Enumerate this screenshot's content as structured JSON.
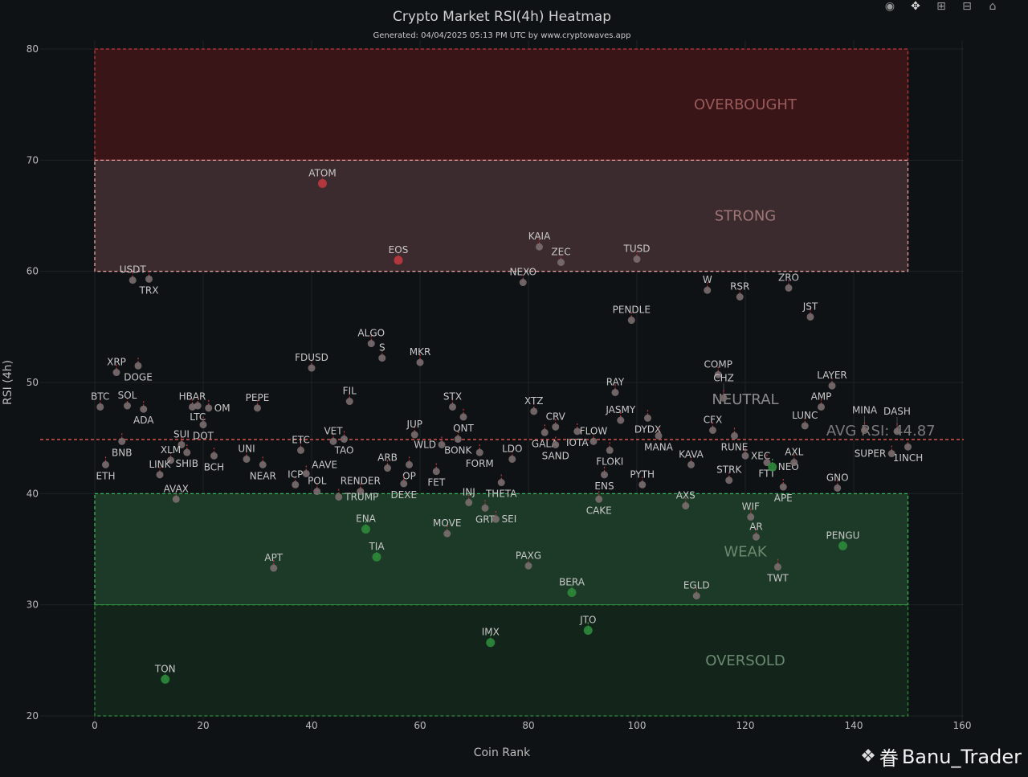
{
  "toolbar": {
    "icons": [
      "camera-icon",
      "pan-icon",
      "zoom-in-icon",
      "zoom-out-icon",
      "home-icon"
    ]
  },
  "watermark": {
    "text": "Banu_Trader",
    "prefix": "眷"
  },
  "chart_data": {
    "type": "scatter",
    "title": "Crypto Market RSI(4h) Heatmap",
    "subtitle": "Generated: 04/04/2025 05:13 PM UTC by www.cryptowaves.app",
    "xlabel": "Coin Rank",
    "ylabel": "RSI (4h)",
    "xlim": [
      -10,
      160
    ],
    "ylim": [
      20,
      80
    ],
    "xticks": [
      0,
      20,
      40,
      60,
      80,
      100,
      120,
      140,
      160
    ],
    "yticks": [
      20,
      30,
      40,
      50,
      60,
      70,
      80
    ],
    "grid": true,
    "colors": {
      "background": "#0f1214",
      "neutral_point": "#7a6e6e",
      "overbought_point": "#c0393f",
      "oversold_point": "#2e8b3a",
      "avg_line": "#d9534f"
    },
    "zones": [
      {
        "label": "OVERBOUGHT",
        "from": 70,
        "to": 80,
        "fill": "#3a1518",
        "border": "#c0393f"
      },
      {
        "label": "STRONG",
        "from": 60,
        "to": 70,
        "fill": "#3b2b2e",
        "border": "#e9a0a0"
      },
      {
        "label": "NEUTRAL",
        "from": 40,
        "to": 60,
        "fill": "",
        "border": ""
      },
      {
        "label": "WEAK",
        "from": 30,
        "to": 40,
        "fill": "#1c3a27",
        "border": "#3bb35a"
      },
      {
        "label": "OVERSOLD",
        "from": 20,
        "to": 30,
        "fill": "#13241a",
        "border": "#2e8b3a"
      }
    ],
    "zone_x_range": [
      0,
      150
    ],
    "average": {
      "label": "AVG RSI: 44.87",
      "value": 44.87
    },
    "points": [
      {
        "name": "ATOM",
        "rank": 42,
        "rsi": 67.9,
        "color": "red"
      },
      {
        "name": "EOS",
        "rank": 56,
        "rsi": 61.0,
        "color": "red"
      },
      {
        "name": "KAIA",
        "rank": 82,
        "rsi": 62.2,
        "color": "gray"
      },
      {
        "name": "ZEC",
        "rank": 86,
        "rsi": 60.8,
        "color": "gray"
      },
      {
        "name": "TUSD",
        "rank": 100,
        "rsi": 61.1,
        "color": "gray"
      },
      {
        "name": "NEXO",
        "rank": 79,
        "rsi": 59.0,
        "color": "gray"
      },
      {
        "name": "USDT",
        "rank": 7,
        "rsi": 59.2,
        "color": "gray"
      },
      {
        "name": "TRX",
        "rank": 10,
        "rsi": 59.3,
        "color": "gray"
      },
      {
        "name": "W",
        "rank": 113,
        "rsi": 58.3,
        "color": "gray"
      },
      {
        "name": "RSR",
        "rank": 119,
        "rsi": 57.7,
        "color": "gray"
      },
      {
        "name": "ZRO",
        "rank": 128,
        "rsi": 58.5,
        "color": "gray"
      },
      {
        "name": "JST",
        "rank": 132,
        "rsi": 55.9,
        "color": "gray"
      },
      {
        "name": "PENDLE",
        "rank": 99,
        "rsi": 55.6,
        "color": "gray"
      },
      {
        "name": "ALGO",
        "rank": 51,
        "rsi": 53.5,
        "color": "gray"
      },
      {
        "name": "S",
        "rank": 53,
        "rsi": 52.2,
        "color": "gray"
      },
      {
        "name": "MKR",
        "rank": 60,
        "rsi": 51.8,
        "color": "gray"
      },
      {
        "name": "FDUSD",
        "rank": 40,
        "rsi": 51.3,
        "color": "gray"
      },
      {
        "name": "XRP",
        "rank": 4,
        "rsi": 50.9,
        "color": "gray"
      },
      {
        "name": "DOGE",
        "rank": 8,
        "rsi": 51.5,
        "color": "gray"
      },
      {
        "name": "COMP",
        "rank": 115,
        "rsi": 50.7,
        "color": "gray"
      },
      {
        "name": "LAYER",
        "rank": 136,
        "rsi": 49.7,
        "color": "gray"
      },
      {
        "name": "RAY",
        "rank": 96,
        "rsi": 49.1,
        "color": "gray"
      },
      {
        "name": "CHZ",
        "rank": 116,
        "rsi": 48.6,
        "color": "gray"
      },
      {
        "name": "FIL",
        "rank": 47,
        "rsi": 48.3,
        "color": "gray"
      },
      {
        "name": "BTC",
        "rank": 1,
        "rsi": 47.8,
        "color": "gray"
      },
      {
        "name": "SOL",
        "rank": 6,
        "rsi": 47.9,
        "color": "gray"
      },
      {
        "name": "ADA",
        "rank": 9,
        "rsi": 47.6,
        "color": "gray"
      },
      {
        "name": "HBAR",
        "rank": 18,
        "rsi": 47.8,
        "color": "gray"
      },
      {
        "name": "LTC",
        "rank": 19,
        "rsi": 47.9,
        "color": "gray"
      },
      {
        "name": "OM",
        "rank": 21,
        "rsi": 47.7,
        "color": "gray"
      },
      {
        "name": "DOT",
        "rank": 20,
        "rsi": 46.2,
        "color": "gray"
      },
      {
        "name": "PEPE",
        "rank": 30,
        "rsi": 47.7,
        "color": "gray"
      },
      {
        "name": "AMP",
        "rank": 134,
        "rsi": 47.8,
        "color": "gray"
      },
      {
        "name": "XTZ",
        "rank": 81,
        "rsi": 47.4,
        "color": "gray"
      },
      {
        "name": "STX",
        "rank": 66,
        "rsi": 47.8,
        "color": "gray"
      },
      {
        "name": "QNT",
        "rank": 68,
        "rsi": 46.9,
        "color": "gray"
      },
      {
        "name": "JASMY",
        "rank": 97,
        "rsi": 46.6,
        "color": "gray"
      },
      {
        "name": "DYDX",
        "rank": 102,
        "rsi": 46.8,
        "color": "gray"
      },
      {
        "name": "MANA",
        "rank": 104,
        "rsi": 45.2,
        "color": "gray"
      },
      {
        "name": "CFX",
        "rank": 114,
        "rsi": 45.7,
        "color": "gray"
      },
      {
        "name": "RUNE",
        "rank": 118,
        "rsi": 45.2,
        "color": "gray"
      },
      {
        "name": "LUNC",
        "rank": 131,
        "rsi": 46.1,
        "color": "gray"
      },
      {
        "name": "MINA",
        "rank": 142,
        "rsi": 45.7,
        "color": "gray"
      },
      {
        "name": "DASH",
        "rank": 148,
        "rsi": 45.6,
        "color": "gray"
      },
      {
        "name": "1INCH",
        "rank": 150,
        "rsi": 44.2,
        "color": "gray"
      },
      {
        "name": "SUPER",
        "rank": 147,
        "rsi": 43.6,
        "color": "gray"
      },
      {
        "name": "JUP",
        "rank": 59,
        "rsi": 45.3,
        "color": "gray"
      },
      {
        "name": "BONK",
        "rank": 67,
        "rsi": 44.9,
        "color": "gray"
      },
      {
        "name": "WLD",
        "rank": 64,
        "rsi": 44.4,
        "color": "gray"
      },
      {
        "name": "FORM",
        "rank": 71,
        "rsi": 43.7,
        "color": "gray"
      },
      {
        "name": "LDO",
        "rank": 77,
        "rsi": 43.1,
        "color": "gray"
      },
      {
        "name": "CRV",
        "rank": 85,
        "rsi": 46.0,
        "color": "gray"
      },
      {
        "name": "GALA",
        "rank": 83,
        "rsi": 45.5,
        "color": "gray"
      },
      {
        "name": "SAND",
        "rank": 85,
        "rsi": 44.4,
        "color": "gray"
      },
      {
        "name": "IOTA",
        "rank": 89,
        "rsi": 45.6,
        "color": "gray"
      },
      {
        "name": "FLOW",
        "rank": 92,
        "rsi": 44.7,
        "color": "gray"
      },
      {
        "name": "FLOKI",
        "rank": 95,
        "rsi": 43.9,
        "color": "gray"
      },
      {
        "name": "ENS",
        "rank": 94,
        "rsi": 41.7,
        "color": "gray"
      },
      {
        "name": "CAKE",
        "rank": 93,
        "rsi": 39.5,
        "color": "gray"
      },
      {
        "name": "PYTH",
        "rank": 101,
        "rsi": 40.8,
        "color": "gray"
      },
      {
        "name": "KAVA",
        "rank": 110,
        "rsi": 42.6,
        "color": "gray"
      },
      {
        "name": "STRK",
        "rank": 117,
        "rsi": 41.2,
        "color": "gray"
      },
      {
        "name": "XEC",
        "rank": 120,
        "rsi": 43.4,
        "color": "gray"
      },
      {
        "name": "FTT",
        "rank": 124,
        "rsi": 42.8,
        "color": "gray"
      },
      {
        "name": "NEO",
        "rank": 125,
        "rsi": 42.4,
        "color": "green"
      },
      {
        "name": "AXL",
        "rank": 129,
        "rsi": 42.8,
        "color": "gray"
      },
      {
        "name": "APE",
        "rank": 127,
        "rsi": 40.6,
        "color": "gray"
      },
      {
        "name": "GNO",
        "rank": 137,
        "rsi": 40.5,
        "color": "gray"
      },
      {
        "name": "AXS",
        "rank": 109,
        "rsi": 38.9,
        "color": "gray"
      },
      {
        "name": "WIF",
        "rank": 121,
        "rsi": 37.9,
        "color": "gray"
      },
      {
        "name": "AR",
        "rank": 122,
        "rsi": 36.1,
        "color": "gray"
      },
      {
        "name": "TWT",
        "rank": 126,
        "rsi": 33.4,
        "color": "gray"
      },
      {
        "name": "PENGU",
        "rank": 138,
        "rsi": 35.3,
        "color": "green"
      },
      {
        "name": "EGLD",
        "rank": 111,
        "rsi": 30.8,
        "color": "gray"
      },
      {
        "name": "BERA",
        "rank": 88,
        "rsi": 31.1,
        "color": "green"
      },
      {
        "name": "JTO",
        "rank": 91,
        "rsi": 27.7,
        "color": "green"
      },
      {
        "name": "IMX",
        "rank": 73,
        "rsi": 26.6,
        "color": "green"
      },
      {
        "name": "PAXG",
        "rank": 80,
        "rsi": 33.5,
        "color": "gray"
      },
      {
        "name": "MOVE",
        "rank": 65,
        "rsi": 36.4,
        "color": "gray"
      },
      {
        "name": "ENA",
        "rank": 50,
        "rsi": 36.8,
        "color": "green"
      },
      {
        "name": "TIA",
        "rank": 52,
        "rsi": 34.3,
        "color": "green"
      },
      {
        "name": "APT",
        "rank": 33,
        "rsi": 33.3,
        "color": "gray"
      },
      {
        "name": "TON",
        "rank": 13,
        "rsi": 23.3,
        "color": "green"
      },
      {
        "name": "INJ",
        "rank": 69,
        "rsi": 39.2,
        "color": "gray"
      },
      {
        "name": "GRT",
        "rank": 72,
        "rsi": 38.7,
        "color": "gray"
      },
      {
        "name": "SEI",
        "rank": 74,
        "rsi": 37.7,
        "color": "gray"
      },
      {
        "name": "THETA",
        "rank": 75,
        "rsi": 41.0,
        "color": "gray"
      },
      {
        "name": "FET",
        "rank": 63,
        "rsi": 42.0,
        "color": "gray"
      },
      {
        "name": "OP",
        "rank": 58,
        "rsi": 42.6,
        "color": "gray"
      },
      {
        "name": "ARB",
        "rank": 54,
        "rsi": 42.3,
        "color": "gray"
      },
      {
        "name": "DEXE",
        "rank": 57,
        "rsi": 40.9,
        "color": "gray"
      },
      {
        "name": "RENDER",
        "rank": 49,
        "rsi": 40.2,
        "color": "gray"
      },
      {
        "name": "TRUMP",
        "rank": 45,
        "rsi": 39.7,
        "color": "gray"
      },
      {
        "name": "POL",
        "rank": 41,
        "rsi": 40.2,
        "color": "gray"
      },
      {
        "name": "ICP",
        "rank": 37,
        "rsi": 40.8,
        "color": "gray"
      },
      {
        "name": "AAVE",
        "rank": 39,
        "rsi": 41.8,
        "color": "gray"
      },
      {
        "name": "ETC",
        "rank": 38,
        "rsi": 43.9,
        "color": "gray"
      },
      {
        "name": "VET",
        "rank": 44,
        "rsi": 44.7,
        "color": "gray"
      },
      {
        "name": "TAO",
        "rank": 46,
        "rsi": 44.9,
        "color": "gray"
      },
      {
        "name": "UNI",
        "rank": 28,
        "rsi": 43.1,
        "color": "gray"
      },
      {
        "name": "NEAR",
        "rank": 31,
        "rsi": 42.6,
        "color": "gray"
      },
      {
        "name": "BCH",
        "rank": 22,
        "rsi": 43.4,
        "color": "gray"
      },
      {
        "name": "SHIB",
        "rank": 17,
        "rsi": 43.7,
        "color": "gray"
      },
      {
        "name": "SUI",
        "rank": 16,
        "rsi": 44.4,
        "color": "gray"
      },
      {
        "name": "XLM",
        "rank": 14,
        "rsi": 43.0,
        "color": "gray"
      },
      {
        "name": "LINK",
        "rank": 12,
        "rsi": 41.7,
        "color": "gray"
      },
      {
        "name": "BNB",
        "rank": 5,
        "rsi": 44.7,
        "color": "gray"
      },
      {
        "name": "ETH",
        "rank": 2,
        "rsi": 42.6,
        "color": "gray"
      },
      {
        "name": "AVAX",
        "rank": 15,
        "rsi": 39.5,
        "color": "gray"
      }
    ]
  }
}
